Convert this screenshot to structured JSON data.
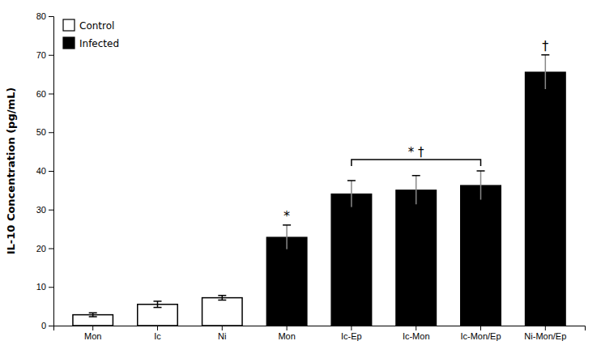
{
  "chart_data": {
    "type": "bar",
    "categories": [
      "Mon",
      "Ic",
      "Ni",
      "Mon",
      "Ic-Ep",
      "Ic-Mon",
      "Ic-Mon/Ep",
      "Ni-Mon/Ep"
    ],
    "series": [
      {
        "name": "Control",
        "color": "white",
        "values": [
          2.8,
          5.5,
          7.2,
          null,
          null,
          null,
          null,
          null
        ],
        "errors": [
          0.5,
          0.8,
          0.6,
          null,
          null,
          null,
          null,
          null
        ]
      },
      {
        "name": "Infected",
        "color": "black",
        "values": [
          null,
          null,
          null,
          22.8,
          34.0,
          35.0,
          36.2,
          65.5
        ],
        "errors": [
          null,
          null,
          null,
          3.2,
          3.5,
          3.8,
          3.8,
          4.5
        ]
      }
    ],
    "ylabel": "IL-10 Concentration (pg/mL)",
    "ylim": [
      0,
      80
    ],
    "yticks": [
      0,
      10,
      20,
      30,
      40,
      50,
      60,
      70,
      80
    ],
    "grid": false,
    "legend": "upper left",
    "annotations": [
      {
        "text": "* †",
        "start": 4,
        "end": 6
      },
      {
        "text": "*",
        "index": 3
      },
      {
        "text": "†",
        "index": 7
      }
    ]
  }
}
